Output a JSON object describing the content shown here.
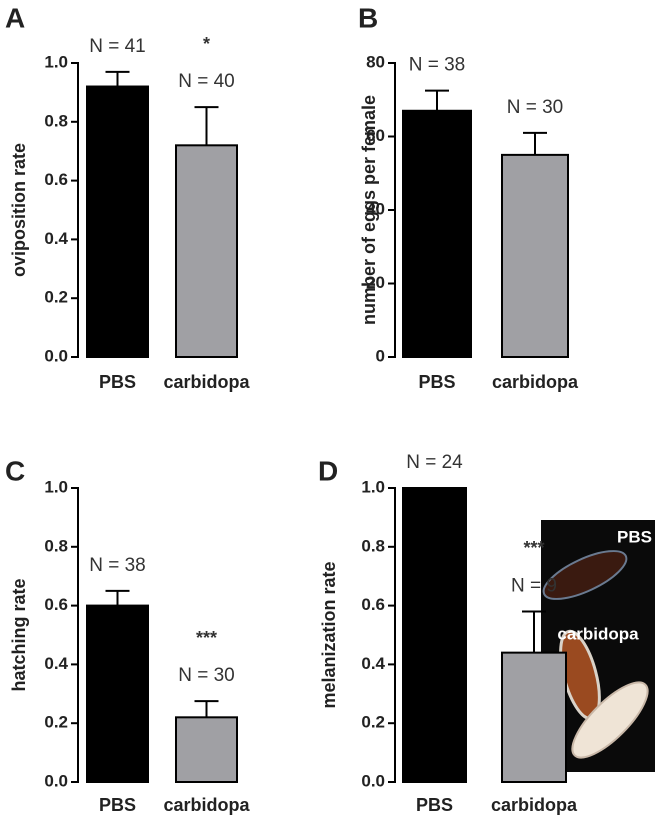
{
  "chart_data": [
    {
      "type": "bar",
      "panel": "A",
      "ylabel": "oviposition rate",
      "categories": [
        "PBS",
        "carbidopa"
      ],
      "values": [
        0.92,
        0.72
      ],
      "errors": [
        0.05,
        0.13
      ],
      "colors": [
        "#000000",
        "#a0a0a4"
      ],
      "n_labels": [
        "N = 41",
        "N = 40"
      ],
      "significance": [
        null,
        "*"
      ],
      "ylim": [
        0,
        1.0
      ],
      "yticks": [
        {
          "value": 0,
          "label": "0.0"
        },
        0.2,
        0.4,
        0.6,
        0.8,
        {
          "value": 1.0,
          "label": "1.0"
        }
      ]
    },
    {
      "type": "bar",
      "panel": "B",
      "ylabel": "number of eggs per female",
      "categories": [
        "PBS",
        "carbidopa"
      ],
      "values": [
        67,
        55
      ],
      "errors": [
        5.5,
        6
      ],
      "colors": [
        "#000000",
        "#a0a0a4"
      ],
      "n_labels": [
        "N = 38",
        "N = 30"
      ],
      "significance": [
        null,
        null
      ],
      "ylim": [
        0,
        80
      ],
      "yticks": [
        0,
        20,
        40,
        60,
        80
      ]
    },
    {
      "type": "bar",
      "panel": "C",
      "ylabel": "hatching rate",
      "categories": [
        "PBS",
        "carbidopa"
      ],
      "values": [
        0.6,
        0.22
      ],
      "errors": [
        0.05,
        0.055
      ],
      "colors": [
        "#000000",
        "#a0a0a4"
      ],
      "n_labels": [
        "N = 38",
        "N = 30"
      ],
      "significance": [
        null,
        "***"
      ],
      "ylim": [
        0,
        1.0
      ],
      "yticks": [
        {
          "value": 0,
          "label": "0.0"
        },
        0.2,
        0.4,
        0.6,
        0.8,
        {
          "value": 1.0,
          "label": "1.0"
        }
      ]
    },
    {
      "type": "bar",
      "panel": "D",
      "ylabel": "melanization rate",
      "categories": [
        "PBS",
        "carbidopa"
      ],
      "values": [
        1.0,
        0.44
      ],
      "errors": [
        null,
        0.14
      ],
      "colors": [
        "#000000",
        "#a0a0a4"
      ],
      "n_labels": [
        "N = 24",
        "N = 9"
      ],
      "significance": [
        null,
        "***"
      ],
      "ylim": [
        0,
        1.0
      ],
      "yticks": [
        {
          "value": 0,
          "label": "0.0"
        },
        0.2,
        0.4,
        0.6,
        0.8,
        {
          "value": 1.0,
          "label": "1.0"
        }
      ],
      "inset_labels": [
        "PBS",
        "carbidopa"
      ]
    }
  ]
}
